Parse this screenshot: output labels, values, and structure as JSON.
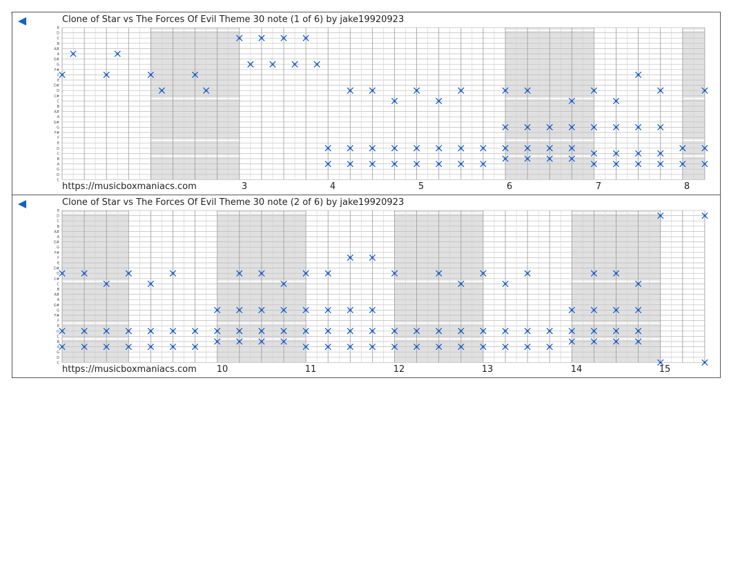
{
  "strips": [
    {
      "title": "Clone of Star vs The Forces Of Evil Theme 30 note (1 of 6) by jake19920923",
      "footer": "https://musicboxmaniacs.com",
      "measure_numbers": [
        "3",
        "4",
        "5",
        "6",
        "7",
        "8"
      ]
    },
    {
      "title": "Clone of Star vs The Forces Of Evil Theme 30 note (2 of 6) by jake19920923",
      "footer": "https://musicboxmaniacs.com",
      "measure_numbers": [
        "10",
        "11",
        "12",
        "13",
        "14",
        "15"
      ]
    }
  ],
  "pitch_labels": [
    "E",
    "D",
    "C",
    "B",
    "A#",
    "A",
    "G#",
    "G",
    "F#",
    "F",
    "E",
    "D#",
    "D",
    "C#",
    "C",
    "B",
    "A#",
    "A",
    "G#",
    "G",
    "F#",
    "F",
    "E",
    "D",
    "C",
    "B",
    "A",
    "G",
    "D",
    "C"
  ],
  "colors": {
    "note": "#1a5fc8",
    "shade": "#e0e0e0",
    "grid": "#bbbbbb",
    "arrow": "#1560c8"
  },
  "chart_data": {
    "type": "scatter",
    "strips": [
      {
        "notes": [
          [
            0,
            9
          ],
          [
            0.5,
            5
          ],
          [
            2,
            9
          ],
          [
            2.5,
            5
          ],
          [
            4,
            9
          ],
          [
            4.5,
            12
          ],
          [
            6,
            9
          ],
          [
            6.5,
            12
          ],
          [
            8,
            2
          ],
          [
            8.5,
            7
          ],
          [
            9,
            2
          ],
          [
            9.5,
            7
          ],
          [
            10,
            2
          ],
          [
            10.5,
            7
          ],
          [
            11,
            2
          ],
          [
            11.5,
            7
          ],
          [
            12,
            23
          ],
          [
            12,
            26
          ],
          [
            13,
            12
          ],
          [
            13,
            23
          ],
          [
            13,
            26
          ],
          [
            14,
            12
          ],
          [
            14,
            23
          ],
          [
            14,
            26
          ],
          [
            15,
            14
          ],
          [
            15,
            23
          ],
          [
            15,
            26
          ],
          [
            16,
            12
          ],
          [
            16,
            23
          ],
          [
            16,
            26
          ],
          [
            17,
            14
          ],
          [
            17,
            23
          ],
          [
            17,
            26
          ],
          [
            18,
            12
          ],
          [
            18,
            23
          ],
          [
            18,
            26
          ],
          [
            19,
            23
          ],
          [
            19,
            26
          ],
          [
            20,
            12
          ],
          [
            20,
            19
          ],
          [
            20,
            23
          ],
          [
            20,
            25
          ],
          [
            21,
            12
          ],
          [
            21,
            19
          ],
          [
            21,
            23
          ],
          [
            21,
            25
          ],
          [
            22,
            19
          ],
          [
            22,
            23
          ],
          [
            22,
            25
          ],
          [
            23,
            14
          ],
          [
            23,
            19
          ],
          [
            23,
            23
          ],
          [
            23,
            25
          ],
          [
            24,
            12
          ],
          [
            24,
            19
          ],
          [
            24,
            24
          ],
          [
            24,
            26
          ],
          [
            25,
            14
          ],
          [
            25,
            19
          ],
          [
            25,
            24
          ],
          [
            25,
            26
          ],
          [
            26,
            9
          ],
          [
            26,
            19
          ],
          [
            26,
            24
          ],
          [
            26,
            26
          ],
          [
            27,
            12
          ],
          [
            27,
            19
          ],
          [
            27,
            24
          ],
          [
            27,
            26
          ],
          [
            28,
            23
          ],
          [
            28,
            26
          ],
          [
            29,
            12
          ],
          [
            29,
            23
          ],
          [
            29,
            26
          ]
        ]
      },
      {
        "notes": [
          [
            0,
            12
          ],
          [
            0,
            23
          ],
          [
            0,
            26
          ],
          [
            1,
            12
          ],
          [
            1,
            23
          ],
          [
            1,
            26
          ],
          [
            2,
            14
          ],
          [
            2,
            23
          ],
          [
            2,
            26
          ],
          [
            3,
            12
          ],
          [
            3,
            23
          ],
          [
            3,
            26
          ],
          [
            4,
            14
          ],
          [
            4,
            23
          ],
          [
            4,
            26
          ],
          [
            5,
            12
          ],
          [
            5,
            23
          ],
          [
            5,
            26
          ],
          [
            6,
            23
          ],
          [
            6,
            26
          ],
          [
            7,
            19
          ],
          [
            7,
            23
          ],
          [
            7,
            25
          ],
          [
            8,
            12
          ],
          [
            8,
            19
          ],
          [
            8,
            23
          ],
          [
            8,
            25
          ],
          [
            9,
            12
          ],
          [
            9,
            19
          ],
          [
            9,
            23
          ],
          [
            9,
            25
          ],
          [
            10,
            14
          ],
          [
            10,
            19
          ],
          [
            10,
            23
          ],
          [
            10,
            25
          ],
          [
            11,
            12
          ],
          [
            11,
            19
          ],
          [
            11,
            23
          ],
          [
            11,
            26
          ],
          [
            12,
            12
          ],
          [
            12,
            19
          ],
          [
            12,
            23
          ],
          [
            12,
            26
          ],
          [
            13,
            9
          ],
          [
            13,
            19
          ],
          [
            13,
            23
          ],
          [
            13,
            26
          ],
          [
            14,
            9
          ],
          [
            14,
            19
          ],
          [
            14,
            23
          ],
          [
            14,
            26
          ],
          [
            15,
            12
          ],
          [
            15,
            23
          ],
          [
            15,
            26
          ],
          [
            16,
            23
          ],
          [
            16,
            26
          ],
          [
            17,
            12
          ],
          [
            17,
            23
          ],
          [
            17,
            26
          ],
          [
            18,
            14
          ],
          [
            18,
            23
          ],
          [
            18,
            26
          ],
          [
            19,
            12
          ],
          [
            19,
            23
          ],
          [
            19,
            26
          ],
          [
            20,
            14
          ],
          [
            20,
            23
          ],
          [
            20,
            26
          ],
          [
            21,
            12
          ],
          [
            21,
            23
          ],
          [
            21,
            26
          ],
          [
            22,
            23
          ],
          [
            22,
            26
          ],
          [
            23,
            19
          ],
          [
            23,
            23
          ],
          [
            23,
            25
          ],
          [
            24,
            12
          ],
          [
            24,
            19
          ],
          [
            24,
            23
          ],
          [
            24,
            25
          ],
          [
            25,
            12
          ],
          [
            25,
            19
          ],
          [
            25,
            23
          ],
          [
            25,
            25
          ],
          [
            26,
            14
          ],
          [
            26,
            19
          ],
          [
            26,
            23
          ],
          [
            26,
            25
          ],
          [
            27,
            1
          ],
          [
            27,
            29
          ],
          [
            29,
            1
          ],
          [
            29,
            29
          ]
        ]
      }
    ]
  }
}
